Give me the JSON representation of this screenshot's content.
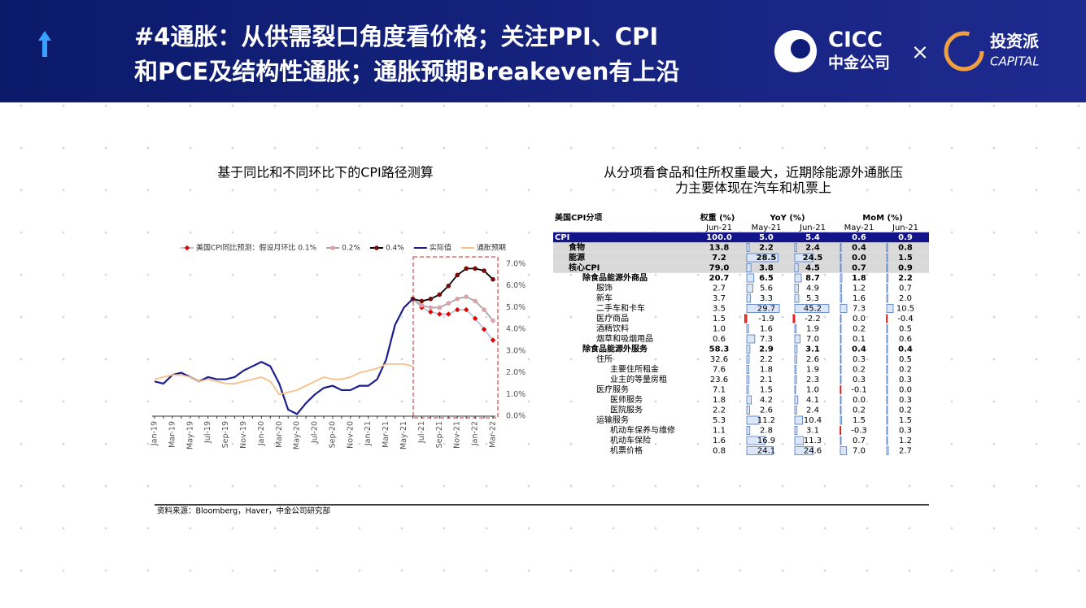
{
  "header": {
    "title_lines": [
      "#4通胀：从供需裂口角度看价格；关注PPI、CPI",
      "和PCE及结构性通胀；通胀预期Breakeven有上沿"
    ],
    "logo_cicc": "CICC",
    "logo_cicc_cn": "中金公司",
    "logo_times": "×",
    "logo_capital_cn": "投资派",
    "logo_capital": "CAPITAL"
  },
  "chart_data": {
    "type": "line",
    "title": "基于同比和不同环比下的CPI路径测算",
    "categories": [
      "Jan-19",
      null,
      "Mar-19",
      null,
      "May-19",
      null,
      "Jul-19",
      null,
      "Sep-19",
      null,
      "Nov-19",
      null,
      "Jan-20",
      null,
      "Mar-20",
      null,
      "May-20",
      null,
      "Jul-20",
      null,
      "Sep-20",
      null,
      "Nov-20",
      null,
      "Jan-21",
      null,
      "Mar-21",
      null,
      "May-21",
      null,
      "Jul-21",
      null,
      "Sep-21",
      null,
      "Nov-21",
      null,
      "Jan-22",
      null,
      "Mar-22"
    ],
    "ylim": [
      0,
      7
    ],
    "yticks": [
      {
        "value": 0,
        "label": "0.0%"
      },
      {
        "value": 1,
        "label": "1.0%"
      },
      {
        "value": 2,
        "label": "2.0%"
      },
      {
        "value": 3,
        "label": "3.0%"
      },
      {
        "value": 4,
        "label": "4.0%"
      },
      {
        "value": 5,
        "label": "5.0%"
      },
      {
        "value": 6,
        "label": "6.0%"
      },
      {
        "value": 7,
        "label": "7.0%"
      }
    ],
    "series": [
      {
        "name": "美国CPI同比预测：假设月环比 0.1%",
        "color": "#b8c4d8",
        "marker_color": "#e00000",
        "marker": "diamond",
        "values": [
          null,
          null,
          null,
          null,
          null,
          null,
          null,
          null,
          null,
          null,
          null,
          null,
          null,
          null,
          null,
          null,
          null,
          null,
          null,
          null,
          null,
          null,
          null,
          null,
          null,
          null,
          null,
          null,
          null,
          5.4,
          5.0,
          4.8,
          4.7,
          4.7,
          4.9,
          4.9,
          4.5,
          4.0,
          3.5
        ]
      },
      {
        "name": "0.2%",
        "color": "#a6a6a6",
        "marker_color": "#dca0a8",
        "marker": "circle",
        "values": [
          null,
          null,
          null,
          null,
          null,
          null,
          null,
          null,
          null,
          null,
          null,
          null,
          null,
          null,
          null,
          null,
          null,
          null,
          null,
          null,
          null,
          null,
          null,
          null,
          null,
          null,
          null,
          null,
          null,
          5.4,
          5.1,
          5.0,
          5.0,
          5.2,
          5.4,
          5.5,
          5.3,
          4.9,
          4.4
        ]
      },
      {
        "name": "0.4%",
        "color": "#000000",
        "marker_color": "#7a0a0a",
        "marker": "circle",
        "values": [
          null,
          null,
          null,
          null,
          null,
          null,
          null,
          null,
          null,
          null,
          null,
          null,
          null,
          null,
          null,
          null,
          null,
          null,
          null,
          null,
          null,
          null,
          null,
          null,
          null,
          null,
          null,
          null,
          null,
          5.4,
          5.3,
          5.4,
          5.6,
          6.0,
          6.5,
          6.8,
          6.8,
          6.7,
          6.3
        ]
      },
      {
        "name": "实际值",
        "color": "#1c1c8c",
        "values": [
          1.6,
          1.5,
          1.9,
          2.0,
          1.8,
          1.6,
          1.8,
          1.7,
          1.7,
          1.8,
          2.1,
          2.3,
          2.5,
          2.3,
          1.5,
          0.3,
          0.1,
          0.6,
          1.0,
          1.3,
          1.4,
          1.2,
          1.2,
          1.4,
          1.4,
          1.7,
          2.6,
          4.2,
          5.0,
          5.4,
          null,
          null,
          null,
          null,
          null,
          null,
          null,
          null,
          null
        ]
      },
      {
        "name": "通胀预期",
        "color": "#f5c08a",
        "values": [
          1.7,
          1.8,
          1.9,
          1.9,
          1.8,
          1.6,
          1.7,
          1.6,
          1.5,
          1.5,
          1.6,
          1.7,
          1.8,
          1.6,
          1.0,
          1.1,
          1.2,
          1.4,
          1.6,
          1.8,
          1.7,
          1.7,
          1.8,
          2.0,
          2.1,
          2.2,
          2.4,
          2.4,
          2.4,
          2.3,
          null,
          null,
          null,
          null,
          null,
          null,
          null,
          null,
          null
        ]
      }
    ]
  },
  "table": {
    "title_lines": [
      "从分项看食品和住所权重最大，近期除能源外通胀压",
      "力主要体现在汽车和机票上"
    ],
    "headers": [
      "美国CPI分项",
      "权重 (%)",
      "YoY (%)",
      "MoM (%)"
    ],
    "subheaders": [
      "Jun-21",
      "May-21",
      "Jun-21",
      "May-21",
      "Jun-21"
    ],
    "rows": [
      [
        "CPI",
        "100.0",
        "5.0",
        "5.4",
        "0.6",
        "0.9"
      ],
      [
        "食物",
        "13.8",
        "2.2",
        "2.4",
        "0.4",
        "0.8"
      ],
      [
        "能源",
        "7.2",
        "28.5",
        "24.5",
        "0.0",
        "1.5"
      ],
      [
        "核心CPI",
        "79.0",
        "3.8",
        "4.5",
        "0.7",
        "0.9"
      ],
      [
        "除食品能源外商品",
        "20.7",
        "6.5",
        "8.7",
        "1.8",
        "2.2"
      ],
      [
        "服饰",
        "2.7",
        "5.6",
        "4.9",
        "1.2",
        "0.7"
      ],
      [
        "新车",
        "3.7",
        "3.3",
        "5.3",
        "1.6",
        "2.0"
      ],
      [
        "二手车和卡车",
        "3.5",
        "29.7",
        "45.2",
        "7.3",
        "10.5"
      ],
      [
        "医疗商品",
        "1.5",
        "-1.9",
        "-2.2",
        "0.0",
        "-0.4"
      ],
      [
        "酒精饮料",
        "1.0",
        "1.6",
        "1.9",
        "0.2",
        "0.5"
      ],
      [
        "烟草和吸烟用品",
        "0.6",
        "7.3",
        "7.0",
        "0.1",
        "0.6"
      ],
      [
        "除食品能源外服务",
        "58.3",
        "2.9",
        "3.1",
        "0.4",
        "0.4"
      ],
      [
        "住所",
        "32.6",
        "2.2",
        "2.6",
        "0.3",
        "0.5"
      ],
      [
        "主要住所租金",
        "7.6",
        "1.8",
        "1.9",
        "0.2",
        "0.2"
      ],
      [
        "业主的等量房租",
        "23.6",
        "2.1",
        "2.3",
        "0.3",
        "0.3"
      ],
      [
        "医疗服务",
        "7.1",
        "1.5",
        "1.0",
        "-0.1",
        "0.0"
      ],
      [
        "医师服务",
        "1.8",
        "4.2",
        "4.1",
        "0.0",
        "0.3"
      ],
      [
        "医院服务",
        "2.2",
        "2.6",
        "2.4",
        "0.2",
        "0.2"
      ],
      [
        "运输服务",
        "5.3",
        "11.2",
        "10.4",
        "1.5",
        "1.5"
      ],
      [
        "机动车保养与维修",
        "1.1",
        "2.8",
        "3.1",
        "-0.3",
        "0.3"
      ],
      [
        "机动车保险",
        "1.6",
        "16.9",
        "11.3",
        "0.7",
        "1.2"
      ],
      [
        "机票价格",
        "0.8",
        "24.1",
        "24.6",
        "7.0",
        "2.7"
      ]
    ]
  },
  "source": "资料来源：Bloomberg，Haver，中金公司研究部"
}
